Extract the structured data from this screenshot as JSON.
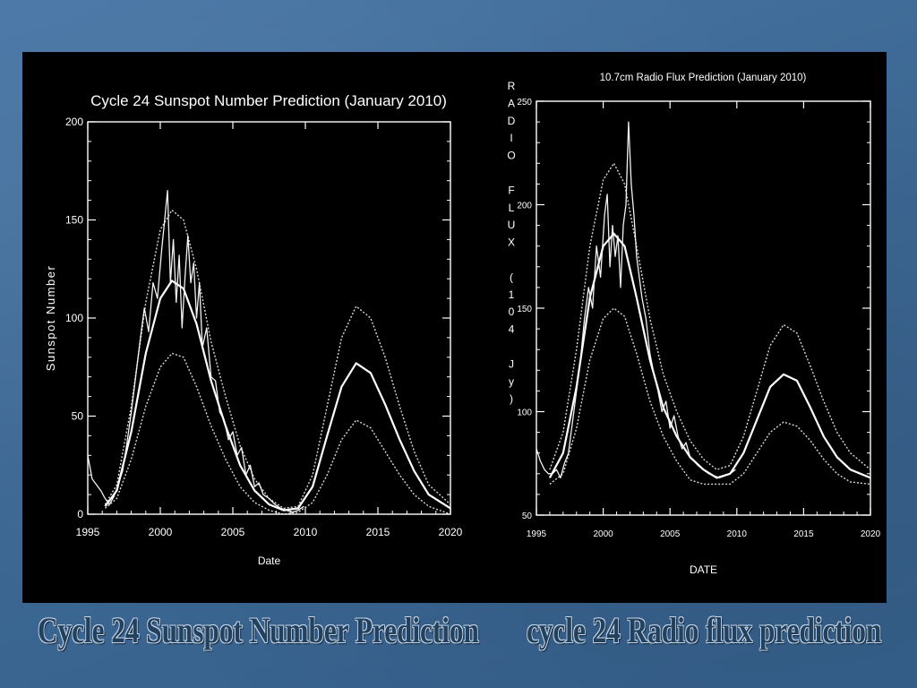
{
  "captions": {
    "left": "Cycle 24 Sunspot Number Prediction",
    "right": "cycle 24 Radio flux prediction"
  },
  "colors": {
    "slide_background": "#3f6a97",
    "panel": "#000000",
    "plot_line": "#ffffff",
    "caption_text": "#22415f"
  },
  "chart_data": [
    {
      "type": "line",
      "title": "Cycle 24 Sunspot Number Prediction (January 2010)",
      "xlabel": "Date",
      "ylabel": "Sunspot Number",
      "xlim": [
        1995,
        2020
      ],
      "ylim": [
        0,
        200
      ],
      "xticks": [
        1995,
        2000,
        2005,
        2010,
        2015,
        2020
      ],
      "yticks": [
        0,
        50,
        100,
        150,
        200
      ],
      "grid": false,
      "series": [
        {
          "style": "observed-noisy",
          "points": [
            [
              1995.0,
              30
            ],
            [
              1995.3,
              18
            ],
            [
              1995.6,
              15
            ],
            [
              1995.9,
              12
            ],
            [
              1996.2,
              8
            ],
            [
              1996.5,
              5
            ],
            [
              1996.8,
              9
            ],
            [
              1997.1,
              15
            ],
            [
              1997.4,
              22
            ],
            [
              1997.7,
              36
            ],
            [
              1998.0,
              52
            ],
            [
              1998.3,
              70
            ],
            [
              1998.6,
              88
            ],
            [
              1998.9,
              105
            ],
            [
              1999.2,
              93
            ],
            [
              1999.5,
              118
            ],
            [
              1999.8,
              110
            ],
            [
              2000.1,
              135
            ],
            [
              2000.3,
              150
            ],
            [
              2000.5,
              165
            ],
            [
              2000.7,
              118
            ],
            [
              2000.9,
              140
            ],
            [
              2001.1,
              108
            ],
            [
              2001.3,
              132
            ],
            [
              2001.5,
              95
            ],
            [
              2001.7,
              120
            ],
            [
              2001.9,
              142
            ],
            [
              2002.1,
              118
            ],
            [
              2002.3,
              128
            ],
            [
              2002.5,
              100
            ],
            [
              2002.7,
              118
            ],
            [
              2002.9,
              85
            ],
            [
              2003.2,
              95
            ],
            [
              2003.5,
              70
            ],
            [
              2003.8,
              68
            ],
            [
              2004.1,
              52
            ],
            [
              2004.4,
              48
            ],
            [
              2004.7,
              38
            ],
            [
              2005.0,
              42
            ],
            [
              2005.3,
              30
            ],
            [
              2005.6,
              34
            ],
            [
              2005.9,
              20
            ],
            [
              2006.2,
              25
            ],
            [
              2006.5,
              14
            ],
            [
              2006.8,
              16
            ],
            [
              2007.1,
              10
            ],
            [
              2007.5,
              8
            ],
            [
              2007.9,
              5
            ],
            [
              2008.3,
              3
            ],
            [
              2008.7,
              2
            ],
            [
              2009.1,
              1
            ],
            [
              2009.5,
              2
            ],
            [
              2009.9,
              4
            ]
          ]
        },
        {
          "style": "smoothed-upper",
          "points": [
            [
              1996.2,
              5
            ],
            [
              1997.0,
              15
            ],
            [
              1998.0,
              55
            ],
            [
              1999.0,
              108
            ],
            [
              2000.0,
              145
            ],
            [
              2000.8,
              155
            ],
            [
              2001.6,
              150
            ],
            [
              2002.5,
              125
            ],
            [
              2003.5,
              88
            ],
            [
              2004.5,
              60
            ],
            [
              2005.5,
              35
            ],
            [
              2006.5,
              18
            ],
            [
              2007.5,
              8
            ],
            [
              2008.5,
              3
            ],
            [
              2009.5,
              4
            ],
            [
              2010.5,
              20
            ],
            [
              2011.5,
              55
            ],
            [
              2012.5,
              90
            ],
            [
              2013.5,
              106
            ],
            [
              2014.5,
              100
            ],
            [
              2015.5,
              80
            ],
            [
              2016.5,
              55
            ],
            [
              2017.5,
              32
            ],
            [
              2018.5,
              15
            ],
            [
              2020.0,
              5
            ]
          ]
        },
        {
          "style": "smoothed-mean",
          "points": [
            [
              1996.2,
              4
            ],
            [
              1997.0,
              12
            ],
            [
              1998.0,
              42
            ],
            [
              1999.0,
              82
            ],
            [
              2000.0,
              110
            ],
            [
              2000.8,
              119
            ],
            [
              2001.6,
              115
            ],
            [
              2002.5,
              97
            ],
            [
              2003.5,
              68
            ],
            [
              2004.5,
              45
            ],
            [
              2005.5,
              25
            ],
            [
              2006.5,
              12
            ],
            [
              2007.5,
              5
            ],
            [
              2008.5,
              2
            ],
            [
              2009.5,
              3
            ],
            [
              2010.5,
              14
            ],
            [
              2011.5,
              40
            ],
            [
              2012.5,
              65
            ],
            [
              2013.5,
              77
            ],
            [
              2014.5,
              72
            ],
            [
              2015.5,
              56
            ],
            [
              2016.5,
              38
            ],
            [
              2017.5,
              22
            ],
            [
              2018.5,
              10
            ],
            [
              2020.0,
              3
            ]
          ]
        },
        {
          "style": "smoothed-lower",
          "points": [
            [
              1996.2,
              3
            ],
            [
              1997.0,
              8
            ],
            [
              1998.0,
              28
            ],
            [
              1999.0,
              55
            ],
            [
              2000.0,
              75
            ],
            [
              2000.8,
              82
            ],
            [
              2001.6,
              80
            ],
            [
              2002.5,
              65
            ],
            [
              2003.5,
              45
            ],
            [
              2004.5,
              28
            ],
            [
              2005.5,
              14
            ],
            [
              2006.5,
              6
            ],
            [
              2007.5,
              2
            ],
            [
              2008.5,
              0
            ],
            [
              2009.5,
              1
            ],
            [
              2010.5,
              6
            ],
            [
              2011.5,
              20
            ],
            [
              2012.5,
              38
            ],
            [
              2013.5,
              48
            ],
            [
              2014.5,
              44
            ],
            [
              2015.5,
              32
            ],
            [
              2016.5,
              20
            ],
            [
              2017.5,
              10
            ],
            [
              2018.5,
              4
            ],
            [
              2020.0,
              0
            ]
          ]
        }
      ]
    },
    {
      "type": "line",
      "title": "10.7cm Radio Flux Prediction (January 2010)",
      "xlabel": "DATE",
      "ylabel": "RADIO FLUX (104 Jy)",
      "xlim": [
        1995,
        2020
      ],
      "ylim": [
        50,
        250
      ],
      "xticks": [
        1995,
        2000,
        2005,
        2010,
        2015,
        2020
      ],
      "yticks": [
        50,
        100,
        150,
        200,
        250
      ],
      "grid": false,
      "series": [
        {
          "style": "observed-noisy",
          "points": [
            [
              1995.0,
              82
            ],
            [
              1995.3,
              76
            ],
            [
              1995.6,
              72
            ],
            [
              1995.9,
              70
            ],
            [
              1996.2,
              70
            ],
            [
              1996.5,
              72
            ],
            [
              1996.8,
              68
            ],
            [
              1997.1,
              75
            ],
            [
              1997.4,
              80
            ],
            [
              1997.7,
              95
            ],
            [
              1998.0,
              110
            ],
            [
              1998.3,
              125
            ],
            [
              1998.6,
              145
            ],
            [
              1998.9,
              160
            ],
            [
              1999.2,
              150
            ],
            [
              1999.5,
              180
            ],
            [
              1999.8,
              165
            ],
            [
              2000.1,
              195
            ],
            [
              2000.3,
              205
            ],
            [
              2000.5,
              170
            ],
            [
              2000.7,
              190
            ],
            [
              2000.9,
              175
            ],
            [
              2001.1,
              185
            ],
            [
              2001.3,
              160
            ],
            [
              2001.5,
              190
            ],
            [
              2001.7,
              200
            ],
            [
              2001.9,
              240
            ],
            [
              2002.1,
              210
            ],
            [
              2002.3,
              195
            ],
            [
              2002.5,
              175
            ],
            [
              2002.7,
              165
            ],
            [
              2002.9,
              155
            ],
            [
              2003.2,
              145
            ],
            [
              2003.5,
              128
            ],
            [
              2003.8,
              118
            ],
            [
              2004.1,
              110
            ],
            [
              2004.4,
              100
            ],
            [
              2004.7,
              105
            ],
            [
              2005.0,
              92
            ],
            [
              2005.3,
              98
            ],
            [
              2005.6,
              88
            ],
            [
              2005.9,
              82
            ],
            [
              2006.2,
              85
            ],
            [
              2006.5,
              78
            ],
            [
              2006.8,
              76
            ],
            [
              2007.1,
              74
            ],
            [
              2007.5,
              72
            ],
            [
              2007.9,
              70
            ],
            [
              2008.3,
              69
            ],
            [
              2008.7,
              68
            ],
            [
              2009.1,
              69
            ],
            [
              2009.5,
              70
            ],
            [
              2009.9,
              72
            ]
          ]
        },
        {
          "style": "smoothed-upper",
          "points": [
            [
              1996.0,
              72
            ],
            [
              1997.0,
              90
            ],
            [
              1998.0,
              130
            ],
            [
              1999.0,
              180
            ],
            [
              2000.0,
              212
            ],
            [
              2000.8,
              220
            ],
            [
              2001.6,
              210
            ],
            [
              2002.5,
              180
            ],
            [
              2003.5,
              145
            ],
            [
              2004.5,
              118
            ],
            [
              2005.5,
              100
            ],
            [
              2006.5,
              86
            ],
            [
              2007.5,
              77
            ],
            [
              2008.5,
              72
            ],
            [
              2009.5,
              74
            ],
            [
              2010.5,
              88
            ],
            [
              2011.5,
              110
            ],
            [
              2012.5,
              132
            ],
            [
              2013.5,
              142
            ],
            [
              2014.5,
              138
            ],
            [
              2015.5,
              122
            ],
            [
              2016.5,
              105
            ],
            [
              2017.5,
              90
            ],
            [
              2018.5,
              80
            ],
            [
              2020.0,
              72
            ]
          ]
        },
        {
          "style": "smoothed-mean",
          "points": [
            [
              1996.0,
              68
            ],
            [
              1997.0,
              80
            ],
            [
              1998.0,
              112
            ],
            [
              1999.0,
              155
            ],
            [
              2000.0,
              180
            ],
            [
              2000.8,
              186
            ],
            [
              2001.6,
              180
            ],
            [
              2002.5,
              155
            ],
            [
              2003.5,
              125
            ],
            [
              2004.5,
              102
            ],
            [
              2005.5,
              88
            ],
            [
              2006.5,
              78
            ],
            [
              2007.5,
              72
            ],
            [
              2008.5,
              68
            ],
            [
              2009.5,
              70
            ],
            [
              2010.5,
              80
            ],
            [
              2011.5,
              96
            ],
            [
              2012.5,
              112
            ],
            [
              2013.5,
              118
            ],
            [
              2014.5,
              115
            ],
            [
              2015.5,
              102
            ],
            [
              2016.5,
              88
            ],
            [
              2017.5,
              78
            ],
            [
              2018.5,
              72
            ],
            [
              2020.0,
              68
            ]
          ]
        },
        {
          "style": "smoothed-lower",
          "points": [
            [
              1996.0,
              65
            ],
            [
              1997.0,
              70
            ],
            [
              1998.0,
              92
            ],
            [
              1999.0,
              125
            ],
            [
              2000.0,
              145
            ],
            [
              2000.8,
              150
            ],
            [
              2001.6,
              146
            ],
            [
              2002.5,
              128
            ],
            [
              2003.5,
              105
            ],
            [
              2004.5,
              88
            ],
            [
              2005.5,
              76
            ],
            [
              2006.5,
              67
            ],
            [
              2007.5,
              65
            ],
            [
              2008.5,
              65
            ],
            [
              2009.5,
              65
            ],
            [
              2010.5,
              70
            ],
            [
              2011.5,
              80
            ],
            [
              2012.5,
              90
            ],
            [
              2013.5,
              95
            ],
            [
              2014.5,
              93
            ],
            [
              2015.5,
              86
            ],
            [
              2016.5,
              77
            ],
            [
              2017.5,
              70
            ],
            [
              2018.5,
              66
            ],
            [
              2020.0,
              65
            ]
          ]
        }
      ]
    }
  ]
}
